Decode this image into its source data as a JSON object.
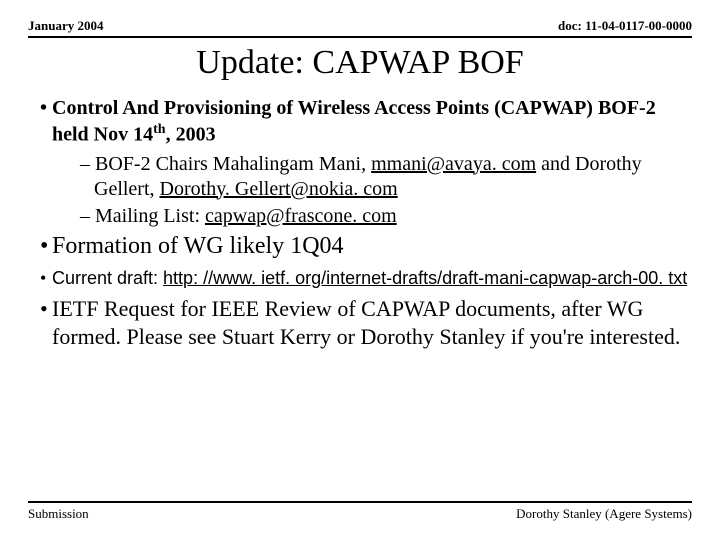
{
  "header": {
    "left": "January 2004",
    "right": "doc: 11-04-0117-00-0000"
  },
  "title": "Update: CAPWAP BOF",
  "bullets": {
    "b1": {
      "lead": "Control And Provisioning of Wireless Access Points (CAPWAP) BOF-2 held Nov 14",
      "sup": "th",
      "tail": ", 2003"
    },
    "b1s1": {
      "lead": "BOF-2 Chairs Mahalingam Mani, ",
      "link1": "mmani@avaya. com",
      "mid": " and Dorothy Gellert, ",
      "link2": "Dorothy. Gellert@nokia. com"
    },
    "b1s2": {
      "lead": "Mailing List: ",
      "link": "capwap@frascone. com"
    },
    "b2": "Formation of WG likely 1Q04",
    "b3": {
      "lead": "Current draft: ",
      "link": "http: //www. ietf. org/internet-drafts/draft-mani-capwap-arch-00. txt"
    },
    "b4": "IETF Request for IEEE Review of CAPWAP documents, after WG formed. Please see Stuart Kerry or Dorothy Stanley if you're interested."
  },
  "footer": {
    "left": "Submission",
    "right": "Dorothy Stanley (Agere Systems)"
  }
}
